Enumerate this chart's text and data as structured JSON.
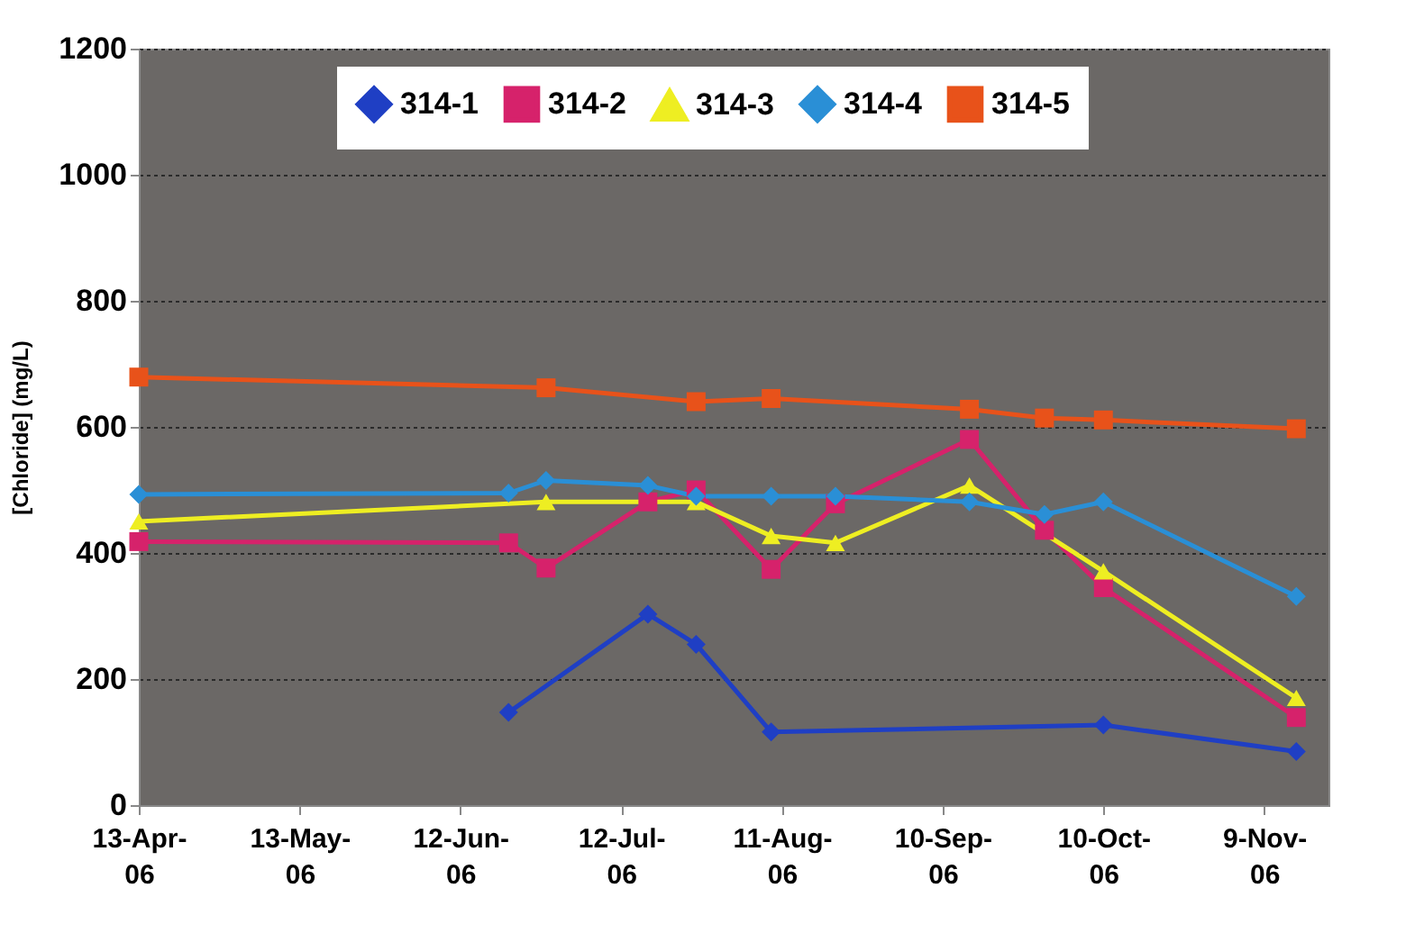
{
  "chart_data": {
    "type": "line",
    "ylabel": "[Chloride] (mg/L)",
    "ylim": [
      0,
      1200
    ],
    "yticks": [
      0,
      200,
      400,
      600,
      800,
      1000,
      1200
    ],
    "xlim": [
      "2006-04-13",
      "2006-11-21"
    ],
    "xticks": [
      {
        "value": "2006-04-13",
        "label": "13-Apr-06"
      },
      {
        "value": "2006-05-13",
        "label": "13-May-06"
      },
      {
        "value": "2006-06-12",
        "label": "12-Jun-06"
      },
      {
        "value": "2006-07-12",
        "label": "12-Jul-06"
      },
      {
        "value": "2006-08-11",
        "label": "11-Aug-06"
      },
      {
        "value": "2006-09-10",
        "label": "10-Sep-06"
      },
      {
        "value": "2006-10-10",
        "label": "10-Oct-06"
      },
      {
        "value": "2006-11-09",
        "label": "9-Nov-06"
      }
    ],
    "grid": "y",
    "legend": "top",
    "series": [
      {
        "name": "314-1",
        "color": "#1f3fc4",
        "marker": "diamond",
        "x": [
          "2006-06-21",
          "2006-07-17",
          "2006-07-26",
          "2006-08-09",
          "2006-10-10",
          "2006-11-15"
        ],
        "values": [
          147,
          303,
          255,
          116,
          127,
          85
        ]
      },
      {
        "name": "314-2",
        "color": "#d6226b",
        "marker": "square",
        "x": [
          "2006-04-13",
          "2006-06-21",
          "2006-06-28",
          "2006-07-17",
          "2006-07-26",
          "2006-08-09",
          "2006-08-21",
          "2006-09-15",
          "2006-09-29",
          "2006-10-10",
          "2006-11-15"
        ],
        "values": [
          418,
          416,
          376,
          481,
          500,
          374,
          478,
          580,
          436,
          345,
          139
        ]
      },
      {
        "name": "314-3",
        "color": "#eeee22",
        "marker": "triangle",
        "x": [
          "2006-04-13",
          "2006-06-28",
          "2006-07-26",
          "2006-08-09",
          "2006-08-21",
          "2006-09-15",
          "2006-10-10",
          "2006-11-15"
        ],
        "values": [
          450,
          481,
          481,
          427,
          416,
          507,
          371,
          170
        ]
      },
      {
        "name": "314-4",
        "color": "#2a8fd6",
        "marker": "diamond",
        "x": [
          "2006-04-13",
          "2006-06-21",
          "2006-06-28",
          "2006-07-17",
          "2006-07-26",
          "2006-08-09",
          "2006-08-21",
          "2006-09-15",
          "2006-09-29",
          "2006-10-10",
          "2006-11-15"
        ],
        "values": [
          493,
          495,
          515,
          507,
          490,
          490,
          490,
          481,
          461,
          481,
          331
        ]
      },
      {
        "name": "314-5",
        "color": "#e8521a",
        "marker": "square",
        "x": [
          "2006-04-13",
          "2006-06-28",
          "2006-07-26",
          "2006-08-09",
          "2006-09-15",
          "2006-09-29",
          "2006-10-10",
          "2006-11-15"
        ],
        "values": [
          679,
          662,
          640,
          645,
          628,
          614,
          611,
          597
        ]
      }
    ]
  }
}
